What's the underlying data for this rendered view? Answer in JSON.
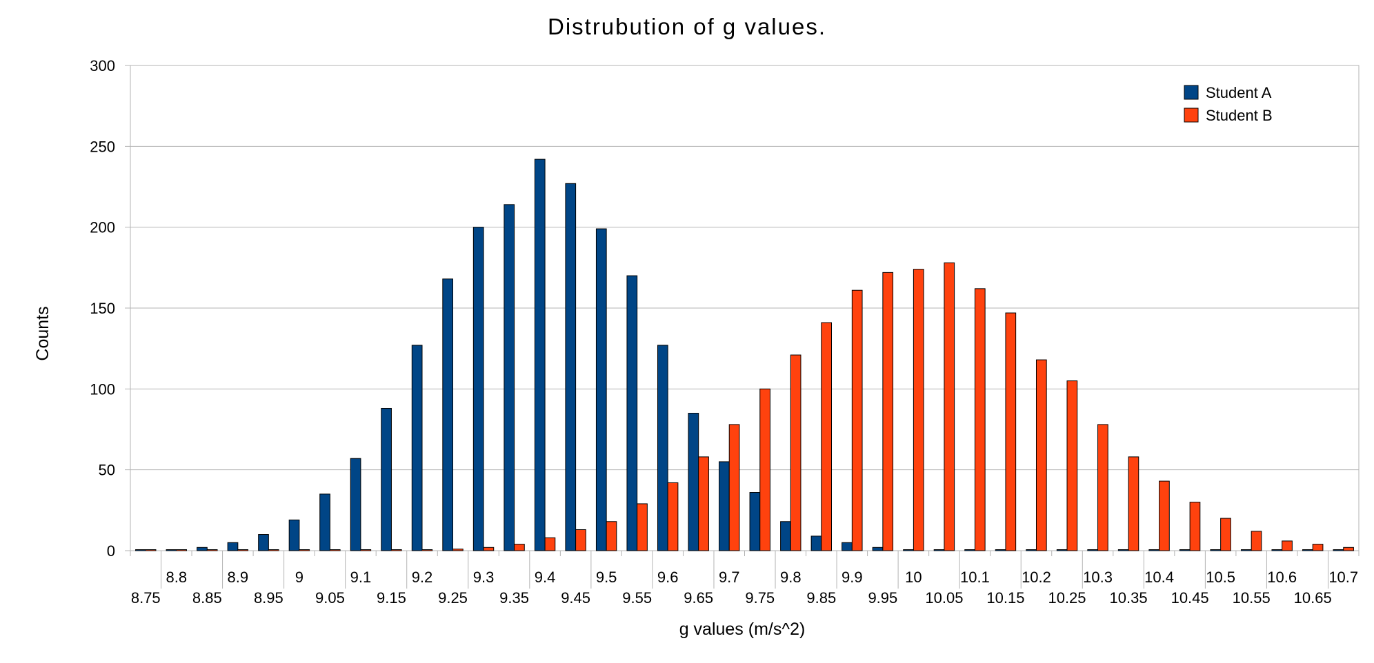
{
  "chart_data": {
    "type": "bar",
    "title": "Distrubution of g values.",
    "xlabel": "g values (m/s^2)",
    "ylabel": "Counts",
    "ylim": [
      0,
      300
    ],
    "yticks": [
      0,
      50,
      100,
      150,
      200,
      250,
      300
    ],
    "grid": true,
    "legend_position": "top-right",
    "categories": [
      "8.75",
      "8.8",
      "8.85",
      "8.9",
      "8.95",
      "9",
      "9.05",
      "9.1",
      "9.15",
      "9.2",
      "9.25",
      "9.3",
      "9.35",
      "9.4",
      "9.45",
      "9.5",
      "9.55",
      "9.6",
      "9.65",
      "9.7",
      "9.75",
      "9.8",
      "9.85",
      "9.9",
      "9.95",
      "10",
      "10.05",
      "10.1",
      "10.15",
      "10.2",
      "10.25",
      "10.3",
      "10.35",
      "10.4",
      "10.45",
      "10.5",
      "10.55",
      "10.6",
      "10.65",
      "10.7"
    ],
    "series": [
      {
        "name": "Student A",
        "color": "#004586",
        "values": [
          0,
          0,
          2,
          5,
          10,
          19,
          35,
          57,
          88,
          127,
          168,
          200,
          214,
          242,
          227,
          199,
          170,
          127,
          85,
          55,
          36,
          18,
          9,
          5,
          2,
          0,
          0,
          0,
          0,
          0,
          0,
          0,
          0,
          0,
          0,
          0,
          0,
          0,
          0,
          0
        ]
      },
      {
        "name": "Student B",
        "color": "#ff420e",
        "values": [
          0,
          0,
          0,
          0,
          0,
          0,
          0,
          0,
          0,
          0,
          1,
          2,
          4,
          8,
          13,
          18,
          29,
          42,
          58,
          78,
          100,
          121,
          141,
          161,
          172,
          174,
          178,
          162,
          147,
          118,
          105,
          78,
          58,
          43,
          30,
          20,
          12,
          6,
          4,
          2
        ]
      }
    ]
  }
}
